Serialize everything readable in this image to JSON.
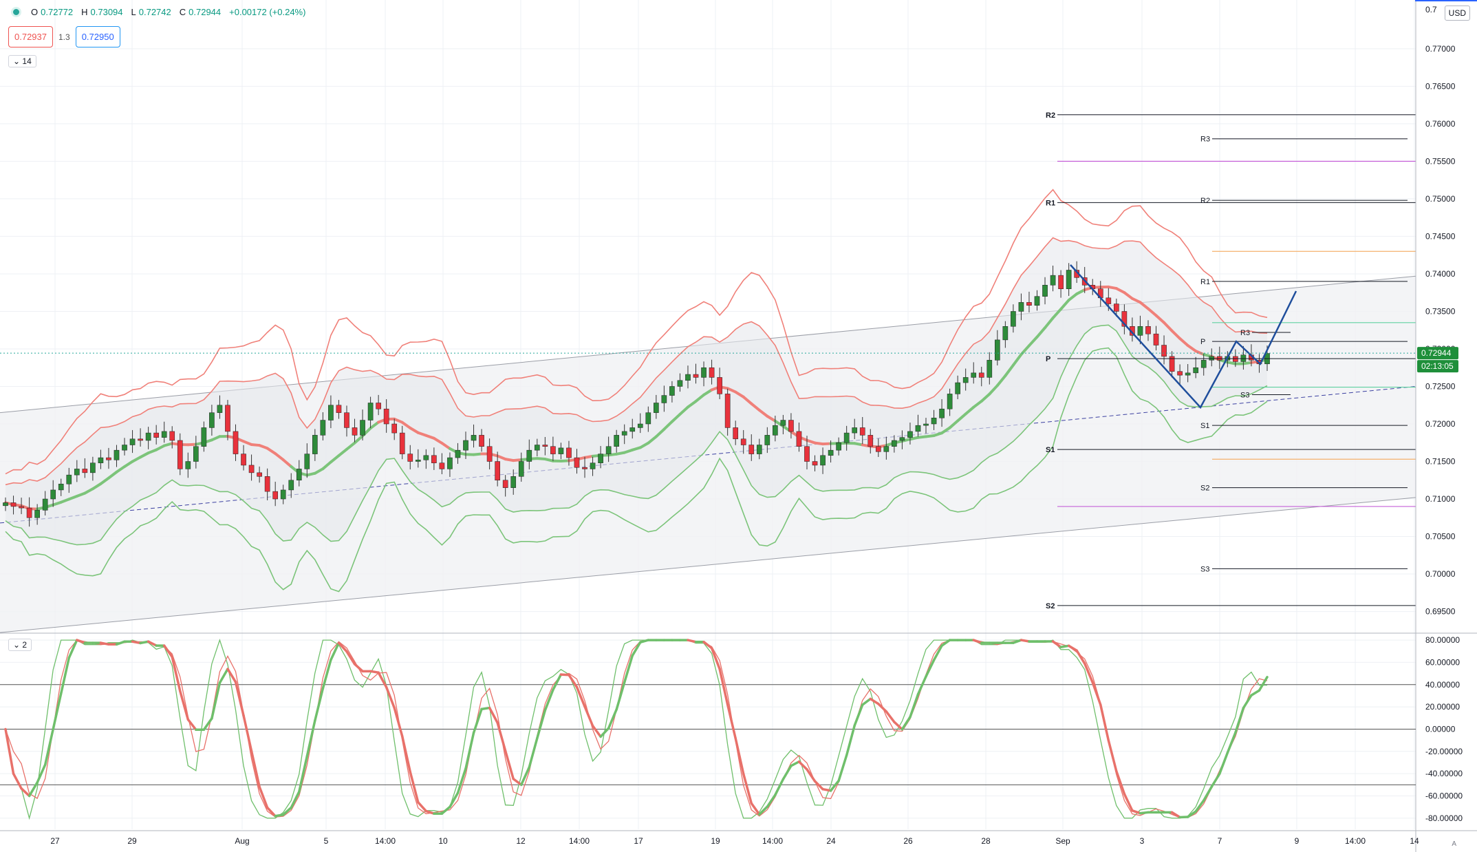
{
  "legend": {
    "o_label": "O",
    "o_value": "0.72772",
    "h_label": "H",
    "h_value": "0.73094",
    "l_label": "L",
    "l_value": "0.72742",
    "c_label": "C",
    "c_value": "0.72944",
    "change": "+0.00172 (+0.24%)"
  },
  "trade": {
    "sell": "0.72937",
    "spread": "1.3",
    "buy": "0.72950"
  },
  "indicator_collapse_1": "14",
  "indicator_collapse_2": "2",
  "currency": "USD",
  "auto_label": "A",
  "colors": {
    "up": "#26a69a",
    "down": "#ef5350",
    "upper": "#f08079",
    "lower": "#7cc47a",
    "blue": "#1f4e9c",
    "purple": "#c561d8",
    "orange": "#f5b16b",
    "teal": "#5fd1a0"
  },
  "chart_data": [
    {
      "type": "candlestick",
      "price_axis_ticks": [
        "0.69500",
        "0.70000",
        "0.70500",
        "0.71000",
        "0.71500",
        "0.72000",
        "0.72500",
        "0.73000",
        "0.73500",
        "0.74000",
        "0.74500",
        "0.75000",
        "0.75500",
        "0.76000",
        "0.76500",
        "0.77000"
      ],
      "price_axis_top_tick": "0.7",
      "ylim": [
        0.6923,
        0.7765
      ],
      "x_axis_ticks": [
        "27",
        "29",
        "Aug",
        "5",
        "14:00",
        "10",
        "12",
        "14:00",
        "17",
        "19",
        "14:00",
        "24",
        "26",
        "28",
        "Sep",
        "3",
        "7",
        "9",
        "14:00",
        "14"
      ],
      "last_price": "0.72944",
      "countdown": "02:13:05",
      "pivot_levels_large": [
        {
          "label": "R2",
          "value": 0.7612
        },
        {
          "label": "R1",
          "value": 0.7495
        },
        {
          "label": "P",
          "value": 0.7287
        },
        {
          "label": "S1",
          "value": 0.7166
        },
        {
          "label": "S2",
          "value": 0.6958
        }
      ],
      "pivot_levels_small": [
        {
          "label": "R3",
          "value": 0.758
        },
        {
          "label": "R2",
          "value": 0.7498
        },
        {
          "label": "R1",
          "value": 0.739
        },
        {
          "label": "P",
          "value": 0.731
        },
        {
          "label": "S1",
          "value": 0.7198
        },
        {
          "label": "S2",
          "value": 0.7115
        },
        {
          "label": "S3",
          "value": 0.7007
        }
      ],
      "pivot_levels_recent": [
        {
          "label": "R3",
          "value": 0.7322
        },
        {
          "label": "S3",
          "value": 0.7239
        }
      ],
      "horizontal_levels": [
        {
          "color": "purple",
          "value": 0.755
        },
        {
          "color": "orange",
          "value": 0.743
        },
        {
          "color": "teal",
          "value": 0.7335
        },
        {
          "color": "teal",
          "value": 0.7249
        },
        {
          "color": "orange",
          "value": 0.7153
        },
        {
          "color": "purple",
          "value": 0.709
        }
      ],
      "closes": [
        0.7095,
        0.709,
        0.7088,
        0.7075,
        0.7085,
        0.71,
        0.7112,
        0.712,
        0.7132,
        0.714,
        0.7135,
        0.7148,
        0.7155,
        0.7152,
        0.7165,
        0.7172,
        0.718,
        0.7178,
        0.7188,
        0.7182,
        0.719,
        0.7178,
        0.714,
        0.715,
        0.717,
        0.7195,
        0.7215,
        0.7225,
        0.719,
        0.716,
        0.7145,
        0.7135,
        0.713,
        0.711,
        0.71,
        0.7112,
        0.7125,
        0.714,
        0.716,
        0.7185,
        0.7205,
        0.7225,
        0.7215,
        0.7195,
        0.7185,
        0.7205,
        0.7228,
        0.722,
        0.72,
        0.7188,
        0.716,
        0.715,
        0.7152,
        0.7158,
        0.7148,
        0.714,
        0.7155,
        0.7165,
        0.7178,
        0.7185,
        0.717,
        0.715,
        0.7125,
        0.7115,
        0.713,
        0.715,
        0.7165,
        0.7172,
        0.717,
        0.716,
        0.7168,
        0.7155,
        0.7142,
        0.714,
        0.7148,
        0.716,
        0.717,
        0.7185,
        0.719,
        0.7195,
        0.72,
        0.7215,
        0.7228,
        0.7238,
        0.725,
        0.7258,
        0.7266,
        0.7262,
        0.7275,
        0.7262,
        0.724,
        0.7195,
        0.718,
        0.7172,
        0.716,
        0.7172,
        0.7185,
        0.7198,
        0.7205,
        0.719,
        0.717,
        0.715,
        0.7145,
        0.7158,
        0.7165,
        0.7175,
        0.7188,
        0.7195,
        0.7185,
        0.717,
        0.7163,
        0.717,
        0.7178,
        0.7182,
        0.719,
        0.7198,
        0.72,
        0.7208,
        0.722,
        0.724,
        0.7255,
        0.7262,
        0.7268,
        0.7262,
        0.7285,
        0.7312,
        0.733,
        0.735,
        0.7362,
        0.7358,
        0.737,
        0.7385,
        0.7398,
        0.738,
        0.7405,
        0.7395,
        0.7385,
        0.738,
        0.7368,
        0.736,
        0.735,
        0.733,
        0.7318,
        0.733,
        0.732,
        0.7305,
        0.729,
        0.727,
        0.7265,
        0.7268,
        0.7275,
        0.7285,
        0.729,
        0.7285,
        0.729,
        0.7283,
        0.7292,
        0.7285,
        0.728,
        0.7294
      ]
    },
    {
      "type": "line",
      "name": "oscillator",
      "ylim": [
        -90,
        85
      ],
      "y_axis_ticks": [
        "80.00000",
        "60.00000",
        "40.00000",
        "20.00000",
        "0.00000",
        "-20.00000",
        "-40.00000",
        "-60.00000",
        "-80.00000"
      ],
      "levels": [
        40,
        0,
        -50
      ]
    }
  ]
}
